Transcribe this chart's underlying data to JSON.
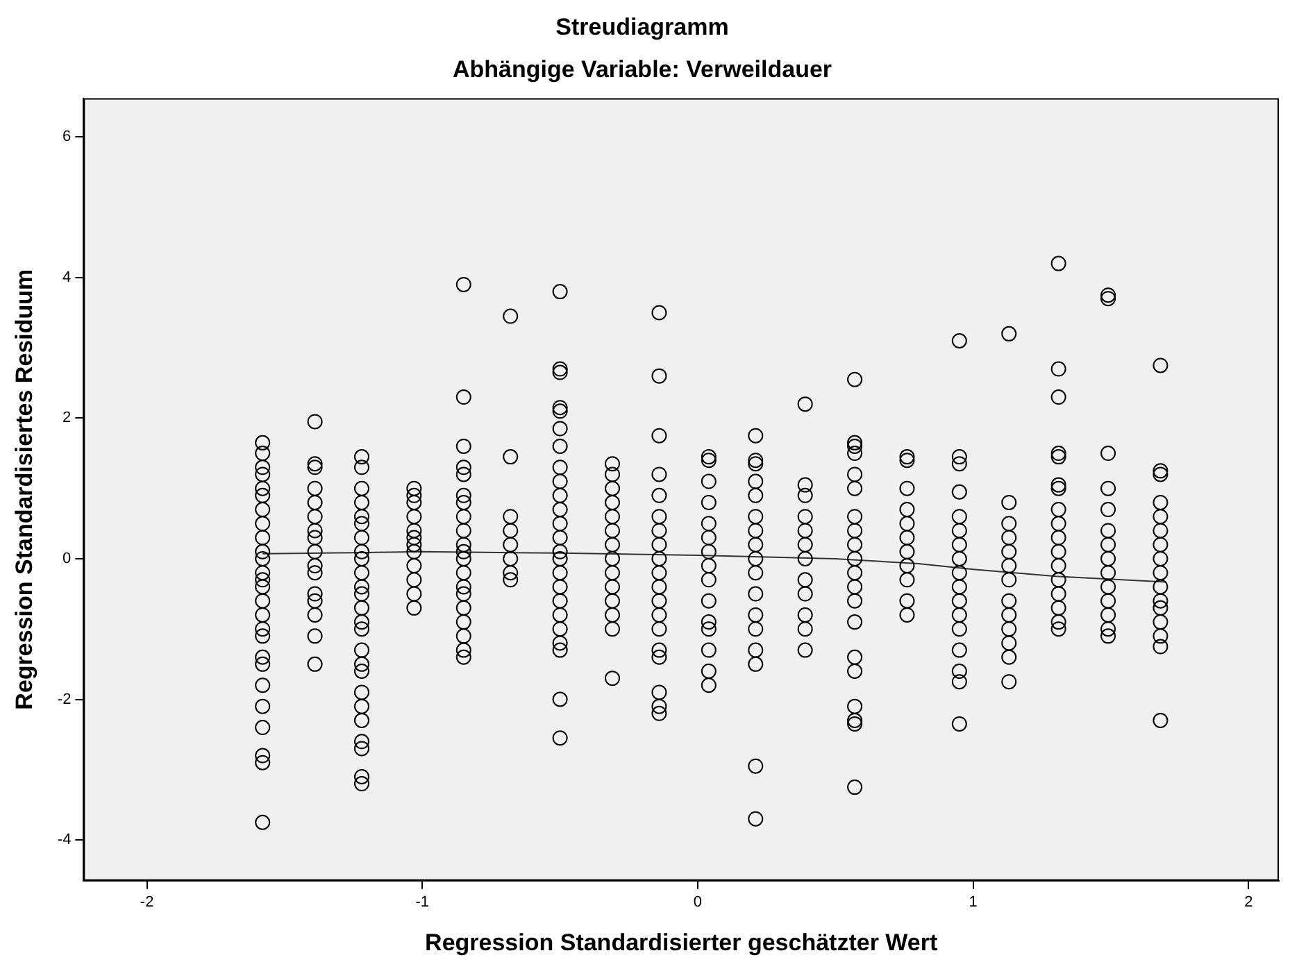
{
  "chart_data": {
    "type": "scatter",
    "title": "Streudiagramm",
    "subtitle": "Abhängige Variable: Verweildauer",
    "xlabel": "Regression Standardisierter geschätzter Wert",
    "ylabel": "Regression Standardisiertes Residuum",
    "xlim": [
      -2.23,
      2.11
    ],
    "ylim": [
      -4.58,
      6.55
    ],
    "xticks": [
      -2,
      -1,
      0,
      1,
      2
    ],
    "yticks": [
      -4,
      -2,
      0,
      2,
      4,
      6
    ],
    "grid": false,
    "legend": false,
    "marker": "circle",
    "series": [
      {
        "color": "#000000",
        "x": [
          -1.58,
          -1.58,
          -1.58,
          -1.58,
          -1.58,
          -1.58,
          -1.58,
          -1.58,
          -1.58,
          -1.58,
          -1.58,
          -1.58,
          -1.58,
          -1.58,
          -1.58,
          -1.58,
          -1.58,
          -1.58,
          -1.58,
          -1.58,
          -1.58,
          -1.58,
          -1.58,
          -1.58,
          -1.58,
          -1.58
        ],
        "values": [
          1.65,
          1.5,
          1.3,
          1.2,
          1.0,
          0.9,
          0.7,
          0.5,
          0.3,
          0.1,
          0,
          -0.2,
          -0.3,
          -0.4,
          -0.6,
          -0.8,
          -1.0,
          -1.1,
          -1.4,
          -1.5,
          -1.8,
          -2.1,
          -2.4,
          -2.8,
          -2.9,
          -3.75
        ]
      },
      {
        "color": "#000000",
        "x": [
          -1.39,
          -1.39,
          -1.39,
          -1.39,
          -1.39,
          -1.39,
          -1.39,
          -1.39,
          -1.39,
          -1.39,
          -1.39,
          -1.39,
          -1.39,
          -1.39,
          -1.39,
          -1.39
        ],
        "values": [
          1.95,
          1.35,
          1.3,
          1.0,
          0.8,
          0.6,
          0.4,
          0.3,
          0.1,
          -0.1,
          -0.2,
          -0.5,
          -0.6,
          -0.8,
          -1.1,
          -1.5
        ]
      },
      {
        "color": "#000000",
        "x": [
          -1.22,
          -1.22,
          -1.22,
          -1.22,
          -1.22,
          -1.22,
          -1.22,
          -1.22,
          -1.22,
          -1.22,
          -1.22,
          -1.22,
          -1.22,
          -1.22,
          -1.22,
          -1.22,
          -1.22,
          -1.22,
          -1.22,
          -1.22,
          -1.22,
          -1.22,
          -1.22,
          -1.22,
          -1.22
        ],
        "values": [
          1.45,
          1.3,
          1.0,
          0.8,
          0.6,
          0.5,
          0.3,
          0.1,
          0,
          -0.2,
          -0.4,
          -0.5,
          -0.7,
          -0.9,
          -1.0,
          -1.3,
          -1.5,
          -1.6,
          -1.9,
          -2.1,
          -2.3,
          -2.6,
          -2.7,
          -3.1,
          -3.2
        ]
      },
      {
        "color": "#000000",
        "x": [
          -1.03,
          -1.03,
          -1.03,
          -1.03,
          -1.03,
          -1.03,
          -1.03,
          -1.03,
          -1.03,
          -1.03,
          -1.03,
          -1.03
        ],
        "values": [
          1.0,
          0.9,
          0.8,
          0.6,
          0.4,
          0.3,
          0.2,
          0.1,
          -0.1,
          -0.3,
          -0.5,
          -0.7
        ]
      },
      {
        "color": "#000000",
        "x": [
          -0.85,
          -0.85,
          -0.85,
          -0.85,
          -0.85,
          -0.85,
          -0.85,
          -0.85,
          -0.85,
          -0.85,
          -0.85,
          -0.85,
          -0.85,
          -0.85,
          -0.85,
          -0.85,
          -0.85,
          -0.85,
          -0.85,
          -0.85
        ],
        "values": [
          3.9,
          2.3,
          1.6,
          1.3,
          1.2,
          0.9,
          0.8,
          0.6,
          0.4,
          0.2,
          0.1,
          0,
          -0.2,
          -0.4,
          -0.5,
          -0.7,
          -0.9,
          -1.1,
          -1.3,
          -1.4
        ]
      },
      {
        "color": "#000000",
        "x": [
          -0.68,
          -0.68,
          -0.68,
          -0.68,
          -0.68,
          -0.68,
          -0.68,
          -0.68
        ],
        "values": [
          3.45,
          1.45,
          0.6,
          0.4,
          0.2,
          0,
          -0.2,
          -0.3
        ]
      },
      {
        "color": "#000000",
        "x": [
          -0.5,
          -0.5,
          -0.5,
          -0.5,
          -0.5,
          -0.5,
          -0.5,
          -0.5,
          -0.5,
          -0.5,
          -0.5,
          -0.5,
          -0.5,
          -0.5,
          -0.5,
          -0.5,
          -0.5,
          -0.5,
          -0.5,
          -0.5,
          -0.5,
          -0.5,
          -0.5,
          -0.5
        ],
        "values": [
          3.8,
          2.7,
          2.65,
          2.15,
          2.1,
          1.85,
          1.6,
          1.3,
          1.1,
          0.9,
          0.7,
          0.5,
          0.3,
          0.1,
          0,
          -0.2,
          -0.4,
          -0.6,
          -0.8,
          -1.0,
          -1.2,
          -1.3,
          -2.0,
          -2.55
        ]
      },
      {
        "color": "#000000",
        "x": [
          -0.31,
          -0.31,
          -0.31,
          -0.31,
          -0.31,
          -0.31,
          -0.31,
          -0.31,
          -0.31,
          -0.31,
          -0.31,
          -0.31,
          -0.31,
          -0.31
        ],
        "values": [
          1.35,
          1.2,
          1.0,
          0.8,
          0.6,
          0.4,
          0.2,
          0,
          -0.2,
          -0.4,
          -0.6,
          -0.8,
          -1.0,
          -1.7
        ]
      },
      {
        "color": "#000000",
        "x": [
          -0.14,
          -0.14,
          -0.14,
          -0.14,
          -0.14,
          -0.14,
          -0.14,
          -0.14,
          -0.14,
          -0.14,
          -0.14,
          -0.14,
          -0.14,
          -0.14,
          -0.14,
          -0.14,
          -0.14,
          -0.14,
          -0.14
        ],
        "values": [
          3.5,
          2.6,
          1.75,
          1.2,
          0.9,
          0.6,
          0.4,
          0.2,
          0,
          -0.2,
          -0.4,
          -0.6,
          -0.8,
          -1.0,
          -1.3,
          -1.4,
          -1.9,
          -2.1,
          -2.2
        ]
      },
      {
        "color": "#000000",
        "x": [
          0.04,
          0.04,
          0.04,
          0.04,
          0.04,
          0.04,
          0.04,
          0.04,
          0.04,
          0.04,
          0.04,
          0.04,
          0.04,
          0.04,
          0.04
        ],
        "values": [
          1.45,
          1.4,
          1.1,
          0.8,
          0.5,
          0.3,
          0.1,
          -0.1,
          -0.3,
          -0.6,
          -0.9,
          -1.0,
          -1.3,
          -1.6,
          -1.8
        ]
      },
      {
        "color": "#000000",
        "x": [
          0.21,
          0.21,
          0.21,
          0.21,
          0.21,
          0.21,
          0.21,
          0.21,
          0.21,
          0.21,
          0.21,
          0.21,
          0.21,
          0.21,
          0.21,
          0.21,
          0.21
        ],
        "values": [
          1.75,
          1.4,
          1.35,
          1.1,
          0.9,
          0.6,
          0.4,
          0.2,
          0,
          -0.2,
          -0.5,
          -0.8,
          -1.0,
          -1.3,
          -1.5,
          -2.95,
          -3.7
        ]
      },
      {
        "color": "#000000",
        "x": [
          0.39,
          0.39,
          0.39,
          0.39,
          0.39,
          0.39,
          0.39,
          0.39,
          0.39,
          0.39,
          0.39,
          0.39
        ],
        "values": [
          2.2,
          1.05,
          0.9,
          0.6,
          0.4,
          0.2,
          0,
          -0.3,
          -0.5,
          -0.8,
          -1.0,
          -1.3
        ]
      },
      {
        "color": "#000000",
        "x": [
          0.57,
          0.57,
          0.57,
          0.57,
          0.57,
          0.57,
          0.57,
          0.57,
          0.57,
          0.57,
          0.57,
          0.57,
          0.57,
          0.57,
          0.57,
          0.57,
          0.57,
          0.57,
          0.57,
          0.57
        ],
        "values": [
          2.55,
          1.65,
          1.6,
          1.5,
          1.2,
          1.0,
          0.6,
          0.4,
          0.2,
          0,
          -0.2,
          -0.4,
          -0.6,
          -0.9,
          -1.4,
          -1.6,
          -2.1,
          -2.3,
          -2.35,
          -3.25
        ]
      },
      {
        "color": "#000000",
        "x": [
          0.76,
          0.76,
          0.76,
          0.76,
          0.76,
          0.76,
          0.76,
          0.76,
          0.76,
          0.76,
          0.76
        ],
        "values": [
          1.45,
          1.4,
          1.0,
          0.7,
          0.5,
          0.3,
          0.1,
          -0.1,
          -0.3,
          -0.6,
          -0.8
        ]
      },
      {
        "color": "#000000",
        "x": [
          0.95,
          0.95,
          0.95,
          0.95,
          0.95,
          0.95,
          0.95,
          0.95,
          0.95,
          0.95,
          0.95,
          0.95,
          0.95,
          0.95,
          0.95,
          0.95,
          0.95
        ],
        "values": [
          3.1,
          1.45,
          1.35,
          0.95,
          0.6,
          0.4,
          0.2,
          0,
          -0.2,
          -0.4,
          -0.6,
          -0.8,
          -1.0,
          -1.3,
          -1.6,
          -1.75,
          -2.35
        ]
      },
      {
        "color": "#000000",
        "x": [
          1.13,
          1.13,
          1.13,
          1.13,
          1.13,
          1.13,
          1.13,
          1.13,
          1.13,
          1.13,
          1.13,
          1.13,
          1.13
        ],
        "values": [
          3.2,
          0.8,
          0.5,
          0.3,
          0.1,
          -0.1,
          -0.3,
          -0.6,
          -0.8,
          -1.0,
          -1.2,
          -1.4,
          -1.75
        ]
      },
      {
        "color": "#000000",
        "x": [
          1.31,
          1.31,
          1.31,
          1.31,
          1.31,
          1.31,
          1.31,
          1.31,
          1.31,
          1.31,
          1.31,
          1.31,
          1.31,
          1.31,
          1.31,
          1.31,
          1.31
        ],
        "values": [
          4.2,
          2.7,
          2.3,
          1.5,
          1.45,
          1.05,
          1.0,
          0.7,
          0.5,
          0.3,
          0.1,
          -0.1,
          -0.3,
          -0.5,
          -0.7,
          -0.9,
          -1.0
        ]
      },
      {
        "color": "#000000",
        "x": [
          1.49,
          1.49,
          1.49,
          1.49,
          1.49,
          1.49,
          1.49,
          1.49,
          1.49,
          1.49,
          1.49,
          1.49,
          1.49,
          1.49
        ],
        "values": [
          3.75,
          3.7,
          1.5,
          1.0,
          0.7,
          0.4,
          0.2,
          0,
          -0.2,
          -0.4,
          -0.6,
          -0.8,
          -1.0,
          -1.1
        ]
      },
      {
        "color": "#000000",
        "x": [
          1.68,
          1.68,
          1.68,
          1.68,
          1.68,
          1.68,
          1.68,
          1.68,
          1.68,
          1.68,
          1.68,
          1.68,
          1.68,
          1.68,
          1.68,
          1.68
        ],
        "values": [
          2.75,
          1.25,
          1.2,
          0.8,
          0.6,
          0.4,
          0.2,
          0,
          -0.2,
          -0.4,
          -0.6,
          -0.7,
          -0.9,
          -1.1,
          -1.25,
          -2.3
        ]
      },
      {
        "type": "line",
        "marker": "none",
        "color": "#333333",
        "x": [
          -1.58,
          -1.0,
          -0.5,
          0,
          0.5,
          0.8,
          1.0,
          1.3,
          1.7
        ],
        "values": [
          0.07,
          0.1,
          0.08,
          0.05,
          0.0,
          -0.07,
          -0.15,
          -0.25,
          -0.33
        ]
      }
    ]
  }
}
